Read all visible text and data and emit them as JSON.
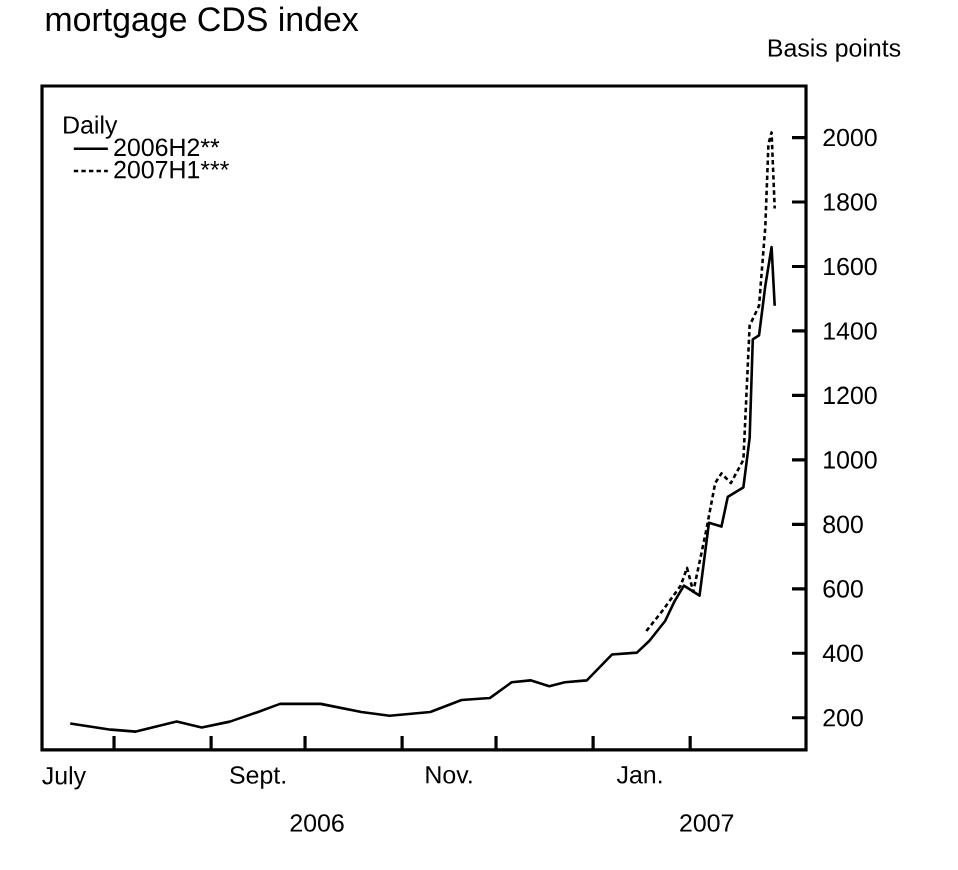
{
  "chart_data": {
    "type": "line",
    "title": "mortgage CDS index",
    "ylabel": "Basis points",
    "legend_title": "Daily",
    "legend": "top left",
    "xlim": [
      "2006-07-09",
      "2007-03-10"
    ],
    "ylim": [
      100,
      2160
    ],
    "xticks": [
      {
        "value": "2006-08-01",
        "label": null
      },
      {
        "value": "2006-09-01",
        "label": null
      },
      {
        "value": "2006-10-01",
        "label": null
      },
      {
        "value": "2006-11-01",
        "label": null
      },
      {
        "value": "2006-12-01",
        "label": null
      },
      {
        "value": "2007-01-01",
        "label": null
      },
      {
        "value": "2007-02-01",
        "label": null
      },
      {
        "value": "2006-07-16",
        "label": "July"
      },
      {
        "value": "2006-09-16",
        "label": "Sept."
      },
      {
        "value": "2006-11-16",
        "label": "Nov."
      },
      {
        "value": "2007-01-16",
        "label": "Jan."
      }
    ],
    "yticks": [
      200,
      400,
      600,
      800,
      1000,
      1200,
      1400,
      1600,
      1800,
      2000
    ],
    "annotations": [
      "2006",
      "2007"
    ],
    "series": [
      {
        "name": "2006H2**",
        "color": "#000000",
        "line_style": "solid",
        "x": [
          "2006-07-18",
          "2006-07-31",
          "2006-08-08",
          "2006-08-21",
          "2006-08-29",
          "2006-09-07",
          "2006-09-16",
          "2006-09-23",
          "2006-10-06",
          "2006-10-19",
          "2006-10-28",
          "2006-11-10",
          "2006-11-20",
          "2006-11-29",
          "2006-12-06",
          "2006-12-12",
          "2006-12-18",
          "2006-12-23",
          "2006-12-30",
          "2007-01-07",
          "2007-01-15",
          "2007-01-19",
          "2007-01-24",
          "2007-01-27",
          "2007-01-30",
          "2007-02-04",
          "2007-02-07",
          "2007-02-11",
          "2007-02-13",
          "2007-02-18",
          "2007-02-20",
          "2007-02-21",
          "2007-02-23",
          "2007-02-25",
          "2007-02-27",
          "2007-02-28"
        ],
        "values": [
          182,
          163,
          157,
          188,
          170,
          188,
          218,
          243,
          243,
          218,
          206,
          218,
          255,
          261,
          310,
          316,
          298,
          310,
          316,
          396,
          402,
          439,
          500,
          561,
          610,
          579,
          805,
          793,
          885,
          915,
          1068,
          1374,
          1386,
          1540,
          1660,
          1478
        ]
      },
      {
        "name": "2007H1***",
        "color": "#000000",
        "line_style": "dashed",
        "x": [
          "2007-01-18",
          "2007-01-23",
          "2007-01-29",
          "2007-01-31",
          "2007-02-02",
          "2007-02-06",
          "2007-02-09",
          "2007-02-11",
          "2007-02-14",
          "2007-02-18",
          "2007-02-20",
          "2007-02-23",
          "2007-02-25",
          "2007-02-26",
          "2007-02-27",
          "2007-02-28"
        ],
        "values": [
          469,
          530,
          610,
          665,
          591,
          775,
          928,
          958,
          928,
          1000,
          1417,
          1478,
          1723,
          1980,
          2016,
          1780
        ]
      }
    ]
  }
}
